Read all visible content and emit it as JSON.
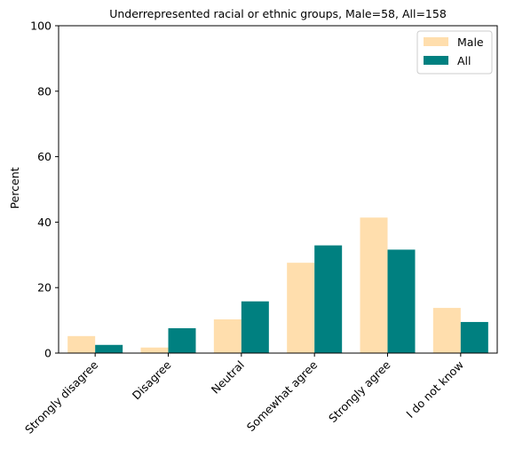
{
  "chart_data": {
    "type": "bar",
    "title": "Underrepresented racial or ethnic groups, Male=58, All=158",
    "xlabel": "",
    "ylabel": "Percent",
    "ylim": [
      0,
      100
    ],
    "yticks": [
      0,
      20,
      40,
      60,
      80,
      100
    ],
    "categories": [
      "Strongly disagree",
      "Disagree",
      "Neutral",
      "Somewhat agree",
      "Strongly agree",
      "I do not know"
    ],
    "series": [
      {
        "name": "Male",
        "color": "#FFDEAD",
        "values": [
          5.2,
          1.7,
          10.3,
          27.6,
          41.4,
          13.8
        ]
      },
      {
        "name": "All",
        "color": "#008080",
        "values": [
          2.5,
          7.6,
          15.8,
          32.9,
          31.6,
          9.5
        ]
      }
    ],
    "legend_position": "top-right",
    "grid": false
  }
}
